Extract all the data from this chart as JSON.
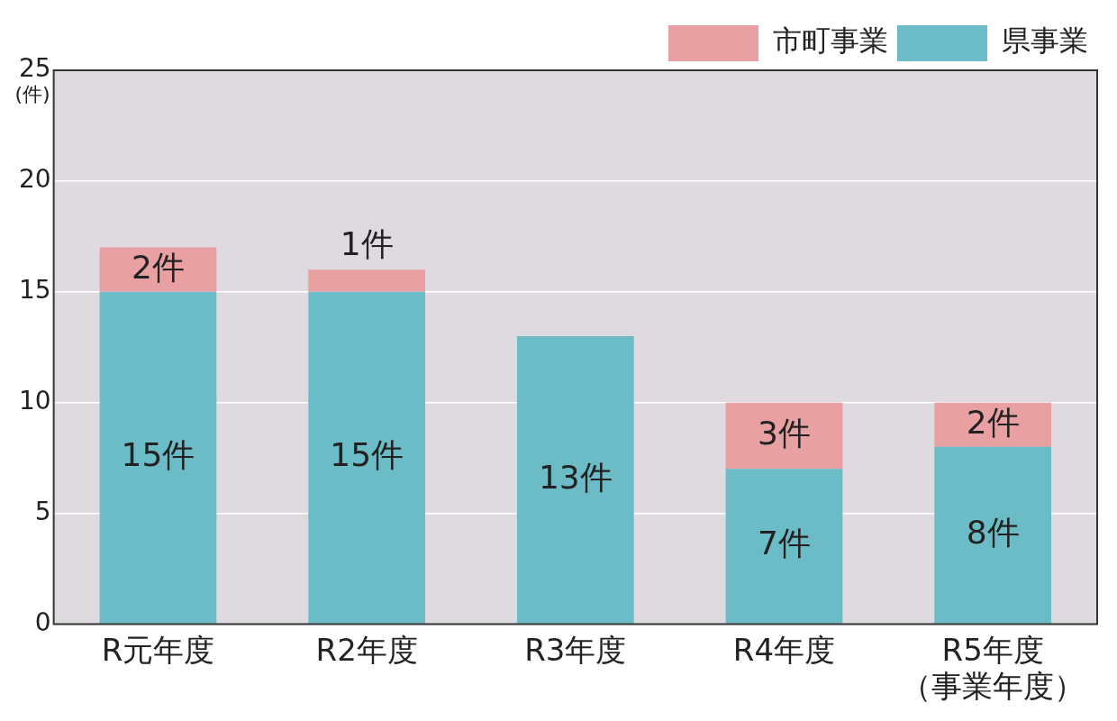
{
  "chart_data": {
    "type": "bar",
    "stacked": true,
    "ylabel": "(件)",
    "categories": [
      "R元年度",
      "R2年度",
      "R3年度",
      "R4年度",
      "R5年度（事業年度）"
    ],
    "series": [
      {
        "name": "県事業",
        "color": "#6bbcc6",
        "values": [
          15,
          15,
          13,
          7,
          8
        ],
        "value_labels": [
          "15件",
          "15件",
          "13件",
          "7件",
          "8件"
        ]
      },
      {
        "name": "市町事業",
        "color": "#e8a0a2",
        "values": [
          2,
          1,
          null,
          3,
          2
        ],
        "value_labels": [
          "2件",
          "1件",
          null,
          "3件",
          "2件"
        ]
      }
    ],
    "ylim": [
      0,
      25
    ],
    "yticks": [
      0,
      5,
      10,
      15,
      20,
      25
    ],
    "grid": "y",
    "legend": "top right"
  }
}
